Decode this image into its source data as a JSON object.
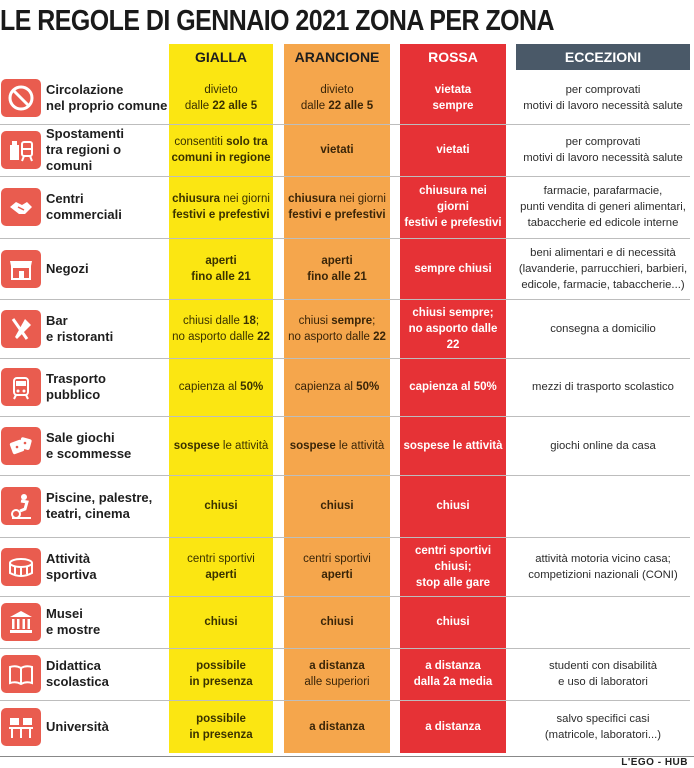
{
  "title": "LE REGOLE DI GENNAIO 2021 ZONA PER ZONA",
  "headers": {
    "gialla": "GIALLA",
    "arancione": "ARANCIONE",
    "rossa": "ROSSA",
    "eccezioni": "ECCEZIONI"
  },
  "colors": {
    "gialla": "#fbe612",
    "arancione": "#f5a64c",
    "rossa": "#e63236",
    "eccezioni_header": "#4a5968",
    "icon": "#e95c4f"
  },
  "rows": [
    {
      "label1": "Circolazione",
      "label2": "nel proprio comune",
      "icon": "no-entry-icon",
      "gialla": [
        "divieto",
        "dalle ",
        "22 alle 5"
      ],
      "arancione": [
        "divieto",
        "dalle ",
        "22 alle 5"
      ],
      "rossa": [
        "vietata",
        "sempre"
      ],
      "eccezioni": [
        "per comprovati",
        "motivi di lavoro necessità salute"
      ]
    },
    {
      "label1": "Spostamenti",
      "label2": "tra regioni o comuni",
      "icon": "travel-icon",
      "gialla": [
        "consentiti ",
        "solo tra",
        "comuni in regione"
      ],
      "arancione": [
        "vietati"
      ],
      "rossa": [
        "vietati"
      ],
      "eccezioni": [
        "per comprovati",
        "motivi di lavoro necessità salute"
      ]
    },
    {
      "label1": "Centri",
      "label2": "commerciali",
      "icon": "handshake-icon",
      "gialla": [
        "chiusura",
        " nei giorni",
        "festivi e prefestivi"
      ],
      "arancione": [
        "chiusura",
        " nei giorni",
        "festivi e prefestivi"
      ],
      "rossa": [
        "chiusura nei giorni",
        "festivi e prefestivi"
      ],
      "eccezioni": [
        "farmacie, parafarmacie,",
        "punti vendita di generi alimentari,",
        "tabaccherie ed edicole interne"
      ]
    },
    {
      "label1": "Negozi",
      "label2": "",
      "icon": "shop-icon",
      "gialla": [
        "aperti",
        "fino alle 21"
      ],
      "arancione": [
        "aperti",
        "fino alle 21"
      ],
      "rossa": [
        "sempre chiusi"
      ],
      "eccezioni": [
        "beni alimentari e di necessità",
        "(lavanderie, parrucchieri, barbieri,",
        "edicole, farmacie, tabaccherie...)"
      ]
    },
    {
      "label1": "Bar",
      "label2": "e ristoranti",
      "icon": "cutlery-icon",
      "gialla": [
        "chiusi dalle ",
        "18",
        ";",
        "no asporto dalle ",
        "22"
      ],
      "arancione": [
        "chiusi ",
        "sempre",
        ";",
        "no asporto dalle ",
        "22"
      ],
      "rossa": [
        "chiusi sempre;",
        "no asporto dalle 22"
      ],
      "eccezioni": [
        "consegna a domicilio"
      ]
    },
    {
      "label1": "Trasporto",
      "label2": "pubblico",
      "icon": "tram-icon",
      "gialla": [
        "capienza al ",
        "50%"
      ],
      "arancione": [
        "capienza al ",
        "50%"
      ],
      "rossa": [
        "capienza al 50%"
      ],
      "eccezioni": [
        "mezzi di trasporto scolastico"
      ]
    },
    {
      "label1": "Sale giochi",
      "label2": "e scommesse",
      "icon": "dice-icon",
      "gialla": [
        "sospese",
        " le attività"
      ],
      "arancione": [
        "sospese",
        " le attività"
      ],
      "rossa": [
        "sospese le attività"
      ],
      "eccezioni": [
        "giochi online da casa"
      ]
    },
    {
      "label1": "Piscine, palestre,",
      "label2": "teatri, cinema",
      "icon": "exercise-bike-icon",
      "gialla": [
        "chiusi"
      ],
      "arancione": [
        "chiusi"
      ],
      "rossa": [
        "chiusi"
      ],
      "eccezioni": []
    },
    {
      "label1": "Attività",
      "label2": "sportiva",
      "icon": "stadium-icon",
      "gialla": [
        "centri sportivi",
        "aperti"
      ],
      "arancione": [
        "centri sportivi",
        "aperti"
      ],
      "rossa": [
        "centri sportivi",
        "chiusi;",
        "stop alle gare"
      ],
      "eccezioni": [
        "attività motoria vicino casa;",
        "competizioni nazionali (CONI)"
      ]
    },
    {
      "label1": "Musei",
      "label2": "e mostre",
      "icon": "museum-icon",
      "gialla": [
        "chiusi"
      ],
      "arancione": [
        "chiusi"
      ],
      "rossa": [
        "chiusi"
      ],
      "eccezioni": []
    },
    {
      "label1": "Didattica",
      "label2": "scolastica",
      "icon": "book-icon",
      "gialla": [
        "possibile",
        "in presenza"
      ],
      "arancione": [
        "a distanza",
        "alle superiori"
      ],
      "rossa": [
        "a distanza",
        "dalla 2a media"
      ],
      "eccezioni": [
        "studenti con disabilità",
        "e uso di laboratori"
      ]
    },
    {
      "label1": "Università",
      "label2": "",
      "icon": "university-icon",
      "gialla": [
        "possibile",
        "in presenza"
      ],
      "arancione": [
        "a distanza"
      ],
      "rossa": [
        "a distanza"
      ],
      "eccezioni": [
        "salvo specifici casi",
        "(matricole, laboratori...)"
      ]
    }
  ],
  "credit": "L'EGO - HUB"
}
